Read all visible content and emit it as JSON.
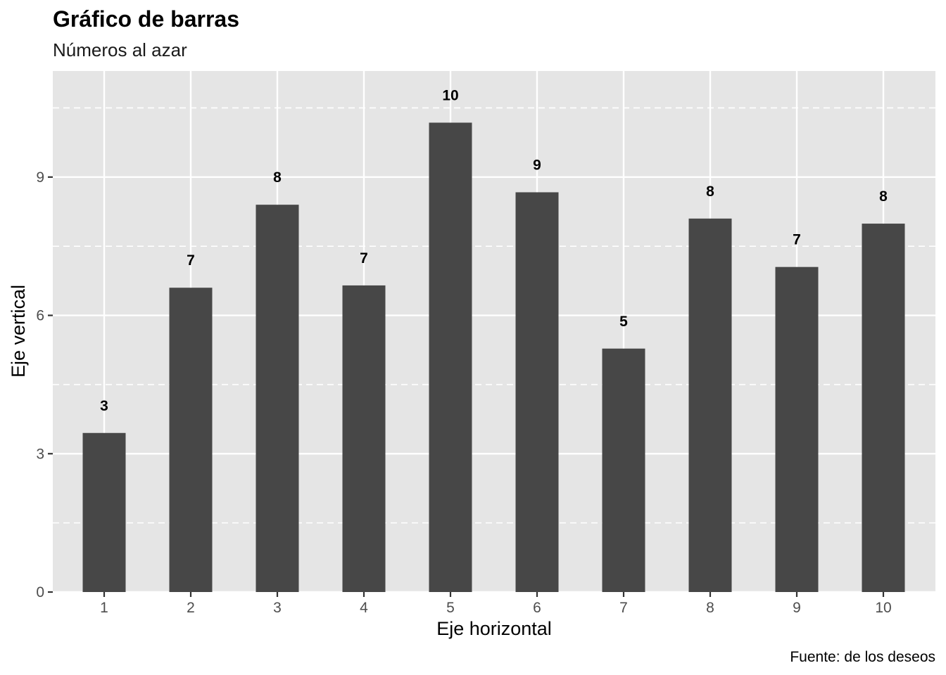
{
  "chart_data": {
    "type": "bar",
    "title": "Gráfico de barras",
    "subtitle": "Números al azar",
    "xlabel": "Eje horizontal",
    "ylabel": "Eje vertical",
    "caption": "Fuente: de los deseos",
    "categories": [
      "1",
      "2",
      "3",
      "4",
      "5",
      "6",
      "7",
      "8",
      "9",
      "10"
    ],
    "values": [
      3.45,
      6.6,
      8.4,
      6.65,
      10.18,
      8.67,
      5.28,
      8.1,
      7.05,
      7.99
    ],
    "data_labels": [
      "3",
      "7",
      "8",
      "7",
      "10",
      "9",
      "5",
      "8",
      "7",
      "8"
    ],
    "yticks": [
      0,
      3,
      6,
      9
    ],
    "yticks_labels": [
      "0",
      "3",
      "6",
      "9"
    ],
    "ylim": [
      0,
      11.3
    ],
    "minor_y_dashed": [
      1.5,
      4.5,
      7.5,
      10.5
    ],
    "grid": true,
    "colors": {
      "panel": "#e5e5e5",
      "bar": "#474747",
      "grid": "#ffffff",
      "tick": "#333333"
    }
  }
}
